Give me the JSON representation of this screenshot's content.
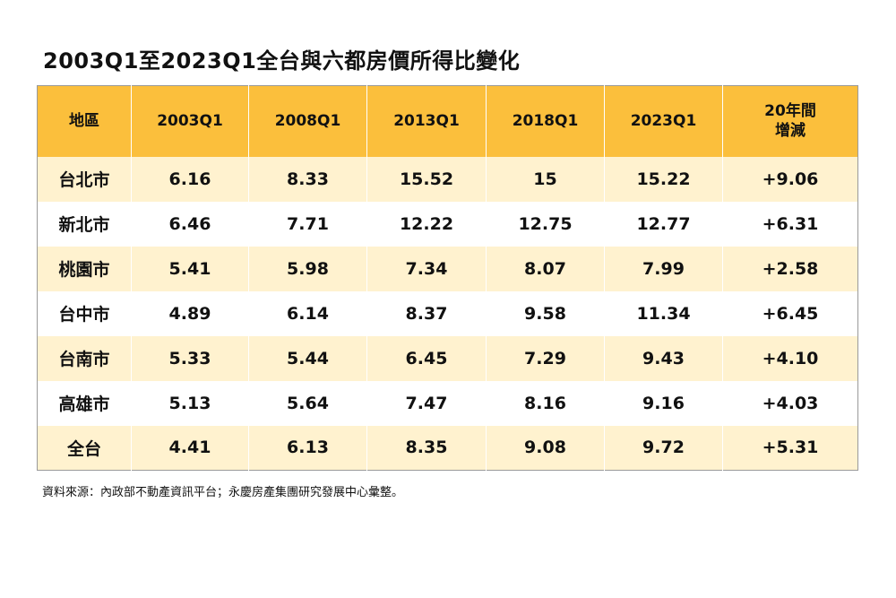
{
  "title": "2003Q1至2023Q1全台與六都房價所得比變化",
  "source": "資料來源：內政部不動產資訊平台；永慶房產集團研究發展中心彙整。",
  "chart_data": {
    "type": "table",
    "columns": [
      "地區",
      "2003Q1",
      "2008Q1",
      "2013Q1",
      "2018Q1",
      "2023Q1",
      "20年間增減"
    ],
    "column_lines": [
      [
        "地區"
      ],
      [
        "2003Q1"
      ],
      [
        "2008Q1"
      ],
      [
        "2013Q1"
      ],
      [
        "2018Q1"
      ],
      [
        "2023Q1"
      ],
      [
        "20年間",
        "增減"
      ]
    ],
    "rows": [
      [
        "台北市",
        "6.16",
        "8.33",
        "15.52",
        "15",
        "15.22",
        "+9.06"
      ],
      [
        "新北市",
        "6.46",
        "7.71",
        "12.22",
        "12.75",
        "12.77",
        "+6.31"
      ],
      [
        "桃園市",
        "5.41",
        "5.98",
        "7.34",
        "8.07",
        "7.99",
        "+2.58"
      ],
      [
        "台中市",
        "4.89",
        "6.14",
        "8.37",
        "9.58",
        "11.34",
        "+6.45"
      ],
      [
        "台南市",
        "5.33",
        "5.44",
        "6.45",
        "7.29",
        "9.43",
        "+4.10"
      ],
      [
        "高雄市",
        "5.13",
        "5.64",
        "7.47",
        "8.16",
        "9.16",
        "+4.03"
      ],
      [
        "全台",
        "4.41",
        "6.13",
        "8.35",
        "9.08",
        "9.72",
        "+5.31"
      ]
    ]
  },
  "colors": {
    "header_bg": "#FBBF3C",
    "stripe_bg": "#FFF2CF",
    "row_bg": "#FFFFFF"
  }
}
